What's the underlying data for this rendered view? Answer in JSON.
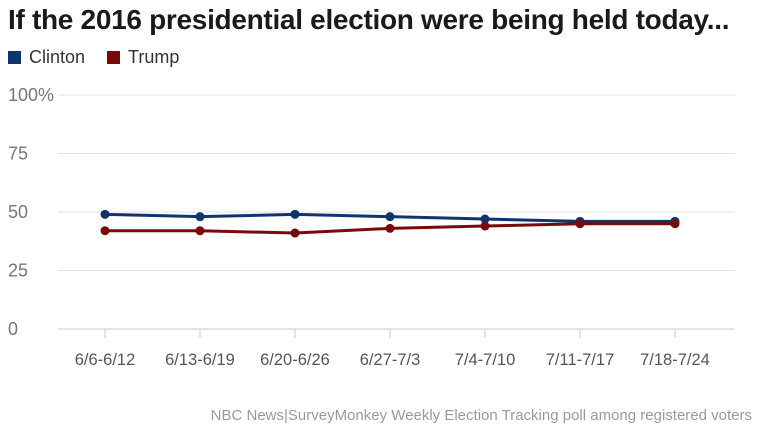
{
  "chart_data": {
    "type": "line",
    "title": "If the 2016 presidential election were being held today...",
    "categories": [
      "6/6-6/12",
      "6/13-6/19",
      "6/20-6/26",
      "6/27-7/3",
      "7/4-7/10",
      "7/11-7/17",
      "7/18-7/24"
    ],
    "series": [
      {
        "name": "Clinton",
        "color": "#0f3470",
        "values": [
          49,
          48,
          49,
          48,
          47,
          46,
          46
        ]
      },
      {
        "name": "Trump",
        "color": "#7a0a0a",
        "values": [
          42,
          42,
          41,
          43,
          44,
          45,
          45
        ]
      }
    ],
    "ylim": [
      0,
      100
    ],
    "yticks": [
      0,
      25,
      50,
      75,
      100
    ],
    "ytick_labels": [
      "0",
      "25",
      "50",
      "75",
      "100%"
    ],
    "grid": true,
    "legend": "top-left",
    "source": "NBC News|SurveyMonkey Weekly Election Tracking poll among registered voters"
  }
}
